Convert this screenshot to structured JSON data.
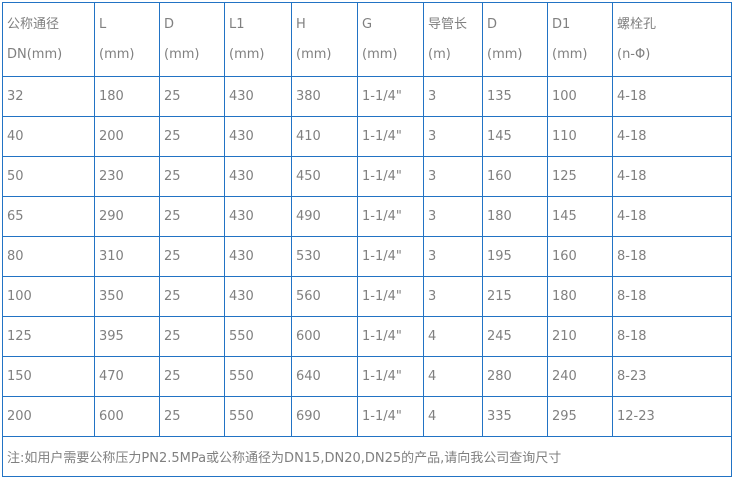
{
  "colors": {
    "border": "#2273c4",
    "text": "#808080"
  },
  "table": {
    "columns": [
      {
        "line1": "公称通径",
        "line2": "DN(mm)"
      },
      {
        "line1": "L",
        "line2": "(mm)"
      },
      {
        "line1": "D",
        "line2": "(mm)"
      },
      {
        "line1": "L1",
        "line2": "(mm)"
      },
      {
        "line1": "H",
        "line2": "(mm)"
      },
      {
        "line1": "G",
        "line2": "(mm)"
      },
      {
        "line1": "导管长",
        "line2": "(m)"
      },
      {
        "line1": "D",
        "line2": "(mm)"
      },
      {
        "line1": "D1",
        "line2": "(mm)"
      },
      {
        "line1": "螺栓孔",
        "line2": "(n-Φ)"
      }
    ],
    "rows": [
      [
        "32",
        "180",
        "25",
        "430",
        "380",
        "1-1/4\"",
        "3",
        "135",
        "100",
        "4-18"
      ],
      [
        "40",
        "200",
        "25",
        "430",
        "410",
        "1-1/4\"",
        "3",
        "145",
        "110",
        "4-18"
      ],
      [
        "50",
        "230",
        "25",
        "430",
        "450",
        "1-1/4\"",
        "3",
        "160",
        "125",
        "4-18"
      ],
      [
        "65",
        "290",
        "25",
        "430",
        "490",
        "1-1/4\"",
        "3",
        "180",
        "145",
        "4-18"
      ],
      [
        "80",
        "310",
        "25",
        "430",
        "530",
        "1-1/4\"",
        "3",
        "195",
        "160",
        "8-18"
      ],
      [
        "100",
        "350",
        "25",
        "430",
        "560",
        "1-1/4\"",
        "3",
        "215",
        "180",
        "8-18"
      ],
      [
        "125",
        "395",
        "25",
        "550",
        "600",
        "1-1/4\"",
        "4",
        "245",
        "210",
        "8-18"
      ],
      [
        "150",
        "470",
        "25",
        "550",
        "640",
        "1-1/4\"",
        "4",
        "280",
        "240",
        "8-23"
      ],
      [
        "200",
        "600",
        "25",
        "550",
        "690",
        "1-1/4\"",
        "4",
        "335",
        "295",
        "12-23"
      ]
    ],
    "note": "注:如用户需要公称压力PN2.5MPa或公称通径为DN15,DN20,DN25的产品,请向我公司查询尺寸"
  }
}
